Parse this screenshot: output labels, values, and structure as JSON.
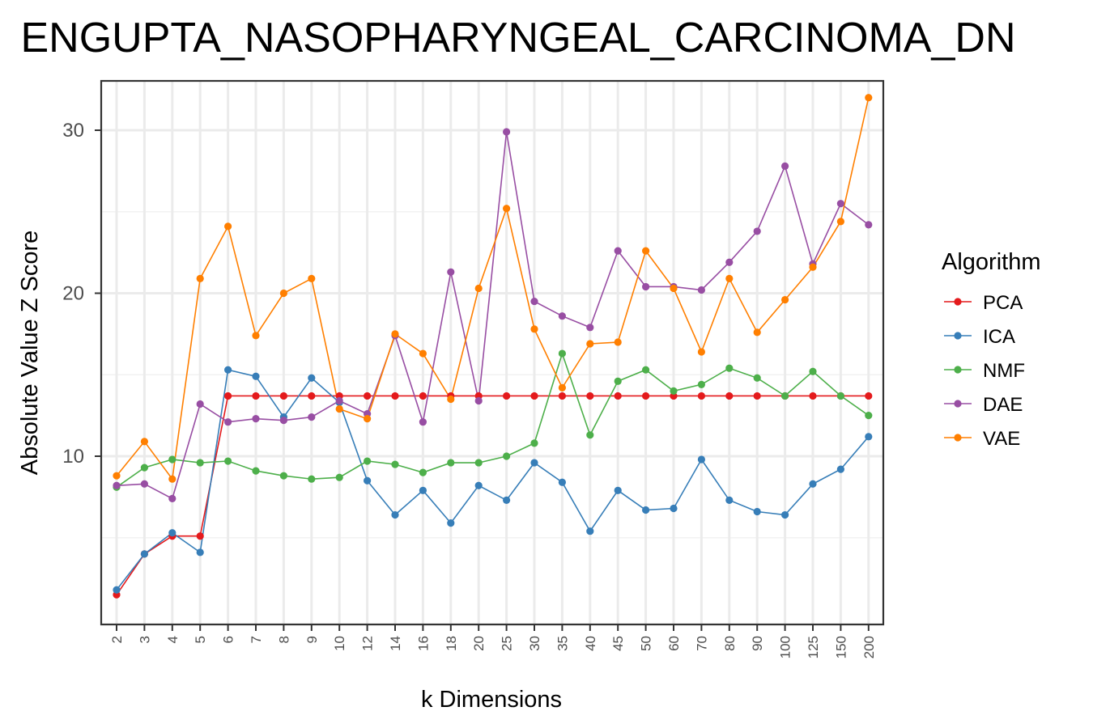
{
  "chart_data": {
    "type": "line",
    "title": "ENGUPTA_NASOPHARYNGEAL_CARCINOMA_DN",
    "xlabel": "k Dimensions",
    "ylabel": "Absolute Value Z Score",
    "categories": [
      "2",
      "3",
      "4",
      "5",
      "6",
      "7",
      "8",
      "9",
      "10",
      "12",
      "14",
      "16",
      "18",
      "20",
      "25",
      "30",
      "35",
      "40",
      "45",
      "50",
      "60",
      "70",
      "80",
      "90",
      "100",
      "125",
      "150",
      "200"
    ],
    "ylim": [
      0,
      33
    ],
    "yticks": [
      "10",
      "20",
      "30"
    ],
    "grid": true,
    "legend": {
      "title": "Algorithm",
      "position": "right"
    },
    "series": [
      {
        "name": "PCA",
        "color": "#E41A1C",
        "values": [
          1.5,
          4.0,
          5.1,
          5.1,
          13.7,
          13.7,
          13.7,
          13.7,
          13.7,
          13.7,
          13.7,
          13.7,
          13.7,
          13.7,
          13.7,
          13.7,
          13.7,
          13.7,
          13.7,
          13.7,
          13.7,
          13.7,
          13.7,
          13.7,
          13.7,
          13.7,
          13.7,
          13.7
        ]
      },
      {
        "name": "ICA",
        "color": "#377EB8",
        "values": [
          1.8,
          4.0,
          5.3,
          4.1,
          15.3,
          14.9,
          12.4,
          14.8,
          13.3,
          8.5,
          6.4,
          7.9,
          5.9,
          8.2,
          7.3,
          9.6,
          8.4,
          5.4,
          7.9,
          6.7,
          6.8,
          9.8,
          7.3,
          6.6,
          6.4,
          8.3,
          9.2,
          11.2
        ]
      },
      {
        "name": "NMF",
        "color": "#4DAF4A",
        "values": [
          8.1,
          9.3,
          9.8,
          9.6,
          9.7,
          9.1,
          8.8,
          8.6,
          8.7,
          9.7,
          9.5,
          9.0,
          9.6,
          9.6,
          10.0,
          10.8,
          16.3,
          11.3,
          14.6,
          15.3,
          14.0,
          14.4,
          15.4,
          14.8,
          13.7,
          15.2,
          13.7,
          12.5
        ]
      },
      {
        "name": "DAE",
        "color": "#984EA3",
        "values": [
          8.2,
          8.3,
          7.4,
          13.2,
          12.1,
          12.3,
          12.2,
          12.4,
          13.4,
          12.6,
          17.4,
          12.1,
          21.3,
          13.4,
          29.9,
          19.5,
          18.6,
          17.9,
          22.6,
          20.4,
          20.4,
          20.2,
          21.9,
          23.8,
          27.8,
          21.8,
          25.5,
          24.2
        ]
      },
      {
        "name": "VAE",
        "color": "#FF7F00",
        "values": [
          8.8,
          10.9,
          8.6,
          20.9,
          24.1,
          17.4,
          20.0,
          20.9,
          12.9,
          12.3,
          17.5,
          16.3,
          13.5,
          20.3,
          25.2,
          17.8,
          14.2,
          16.9,
          17.0,
          22.6,
          20.3,
          16.4,
          20.9,
          17.6,
          19.6,
          21.6,
          24.4,
          32.0
        ]
      }
    ]
  }
}
